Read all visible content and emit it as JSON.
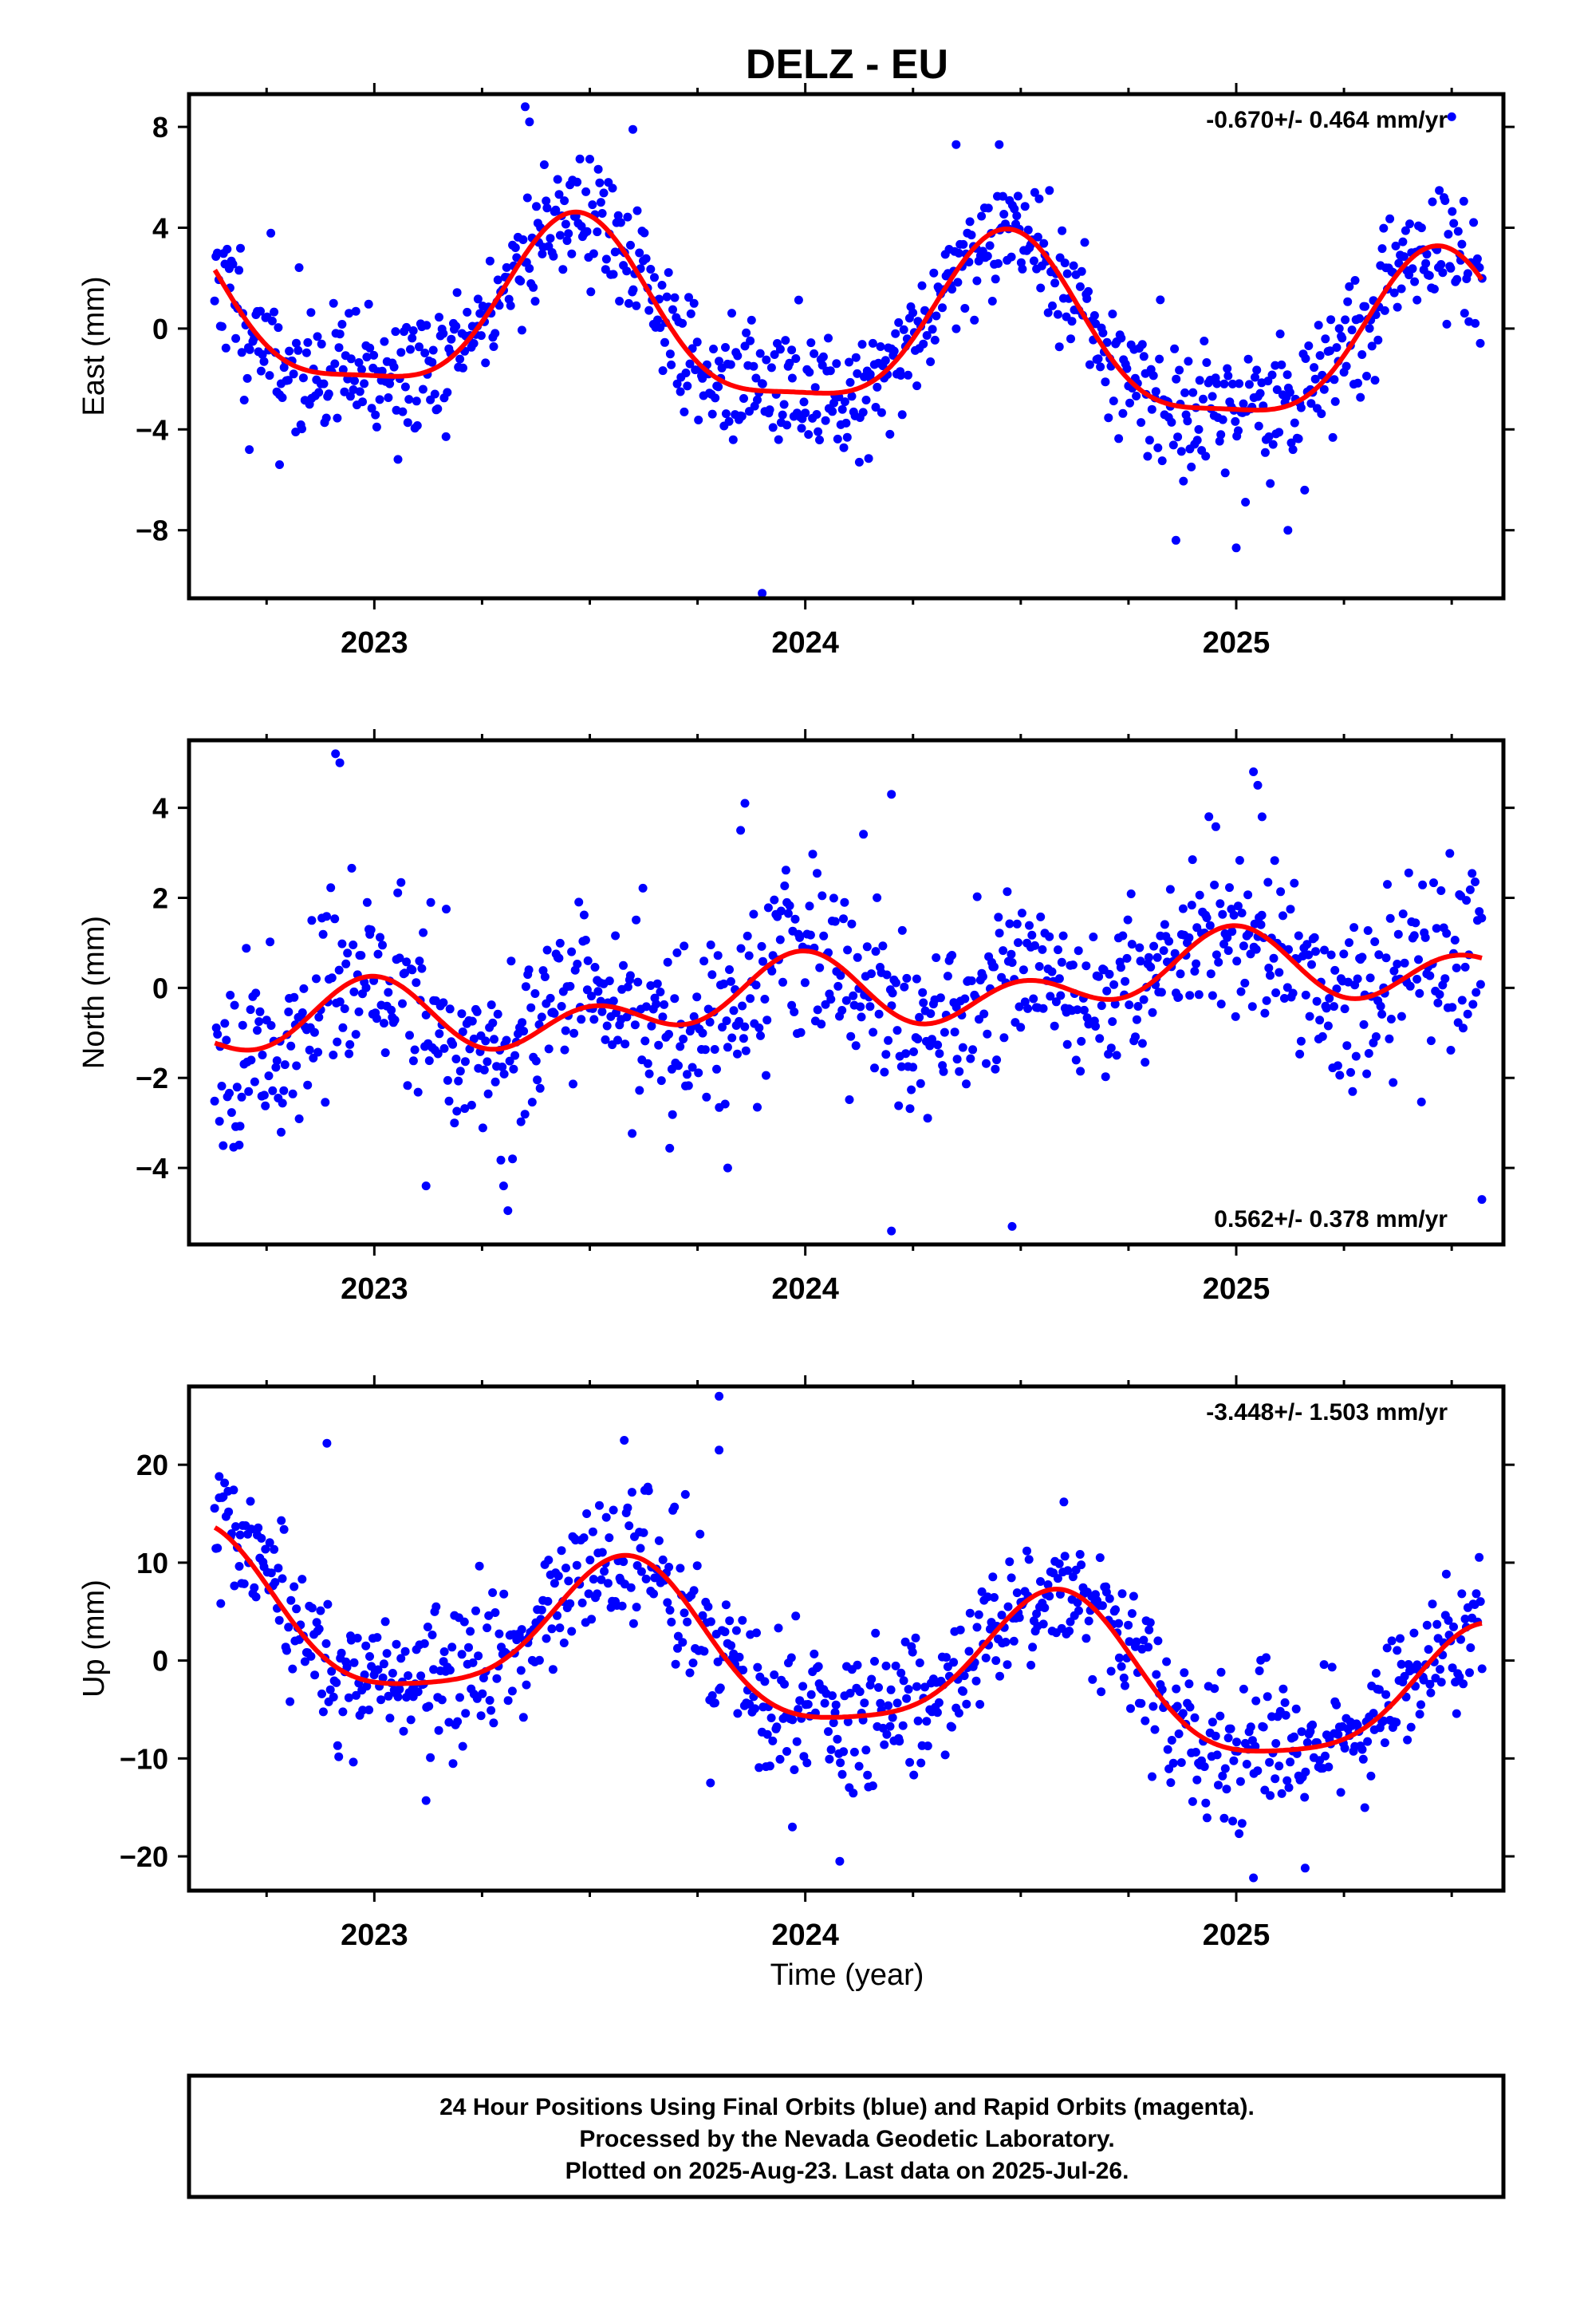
{
  "title": "DELZ - EU",
  "xlabel": "Time (year)",
  "footer": {
    "line1": "24 Hour Positions Using Final Orbits (blue) and Rapid Orbits (magenta).",
    "line2": "Processed by the Nevada Geodetic Laboratory.",
    "line3": "Plotted on 2025-Aug-23. Last data on 2025-Jul-26."
  },
  "colors": {
    "points": "#0000ff",
    "fit": "#ff0000",
    "frame": "#000000"
  },
  "chart_data": [
    {
      "type": "scatter",
      "ylabel": "East (mm)",
      "rate_label": "-0.670+/- 0.464 mm/yr",
      "rate_position": "top-right",
      "xlim": [
        2022.57,
        2025.62
      ],
      "ylim": [
        -10.7,
        9.3
      ],
      "xticks": [
        2023,
        2024,
        2025
      ],
      "yticks": [
        8,
        4,
        0,
        -4,
        -8
      ],
      "fit": {
        "offset": -0.1,
        "slope": -0.67,
        "t0": 2024.1,
        "amp1": 3.4,
        "phase1_year": 2023.47,
        "amp2": 0.9,
        "phase2_year": 2023.47,
        "x_start": 2022.63,
        "x_end": 2025.57
      },
      "series": [
        {
          "values_note": "daily solutions",
          "n": 900,
          "scatter_sd": 1.3,
          "x_start": 2022.63,
          "x_end": 2025.57,
          "seed": 11,
          "outliers": [
            [
              2023.35,
              8.8
            ],
            [
              2023.36,
              8.2
            ],
            [
              2023.6,
              7.9
            ],
            [
              2023.9,
              -10.5
            ],
            [
              2025.0,
              -8.7
            ],
            [
              2024.86,
              -8.4
            ],
            [
              2025.12,
              -8.0
            ],
            [
              2025.5,
              8.4
            ],
            [
              2024.45,
              7.3
            ],
            [
              2024.35,
              7.3
            ],
            [
              2022.71,
              -4.8
            ],
            [
              2022.78,
              -5.4
            ]
          ]
        }
      ]
    },
    {
      "type": "scatter",
      "ylabel": "North (mm)",
      "rate_label": "0.562+/- 0.378 mm/yr",
      "rate_position": "bottom-right",
      "xlim": [
        2022.57,
        2025.62
      ],
      "ylim": [
        -5.7,
        5.5
      ],
      "xticks": [
        2023,
        2024,
        2025
      ],
      "yticks": [
        4,
        2,
        0,
        -2,
        -4
      ],
      "fit": {
        "offset": -0.15,
        "slope": 0.562,
        "t0": 2024.1,
        "amp1": 0.5,
        "phase1_year": 2022.95,
        "amp2": 0.55,
        "phase2_year": 2023.0,
        "x_start": 2022.63,
        "x_end": 2025.57
      },
      "series": [
        {
          "values_note": "daily solutions",
          "n": 900,
          "scatter_sd": 1.0,
          "x_start": 2022.63,
          "x_end": 2025.57,
          "seed": 23,
          "outliers": [
            [
              2022.91,
              5.2
            ],
            [
              2022.92,
              5.0
            ],
            [
              2024.2,
              4.3
            ],
            [
              2025.04,
              4.8
            ],
            [
              2025.05,
              4.5
            ],
            [
              2025.06,
              3.8
            ],
            [
              2024.2,
              -5.4
            ],
            [
              2024.48,
              -5.3
            ],
            [
              2023.3,
              -4.4
            ],
            [
              2023.82,
              -4.0
            ],
            [
              2025.57,
              -4.7
            ],
            [
              2023.12,
              -4.4
            ],
            [
              2023.86,
              4.1
            ],
            [
              2023.85,
              3.5
            ]
          ]
        }
      ]
    },
    {
      "type": "scatter",
      "ylabel": "Up (mm)",
      "rate_label": "-3.448+/- 1.503 mm/yr",
      "rate_position": "top-right",
      "xlim": [
        2022.57,
        2025.62
      ],
      "ylim": [
        -23.5,
        28.0
      ],
      "xticks": [
        2023,
        2024,
        2025
      ],
      "yticks": [
        20,
        10,
        0,
        -10,
        -20
      ],
      "fit": {
        "offset": 0.0,
        "slope": -3.448,
        "t0": 2024.1,
        "amp1": 7.4,
        "phase1_year": 2023.58,
        "amp2": 1.6,
        "phase2_year": 2023.6,
        "x_start": 2022.63,
        "x_end": 2025.57
      },
      "series": [
        {
          "values_note": "daily solutions",
          "n": 900,
          "scatter_sd": 3.6,
          "x_start": 2022.63,
          "x_end": 2025.57,
          "seed": 37,
          "outliers": [
            [
              2023.8,
              27.0
            ],
            [
              2023.8,
              21.5
            ],
            [
              2023.58,
              22.5
            ],
            [
              2022.89,
              22.2
            ],
            [
              2024.08,
              -20.5
            ],
            [
              2025.04,
              -22.2
            ],
            [
              2025.16,
              -21.2
            ],
            [
              2023.12,
              -14.3
            ],
            [
              2023.78,
              -12.5
            ],
            [
              2024.6,
              16.2
            ],
            [
              2022.64,
              18.8
            ],
            [
              2023.97,
              -17.0
            ]
          ]
        }
      ]
    }
  ]
}
